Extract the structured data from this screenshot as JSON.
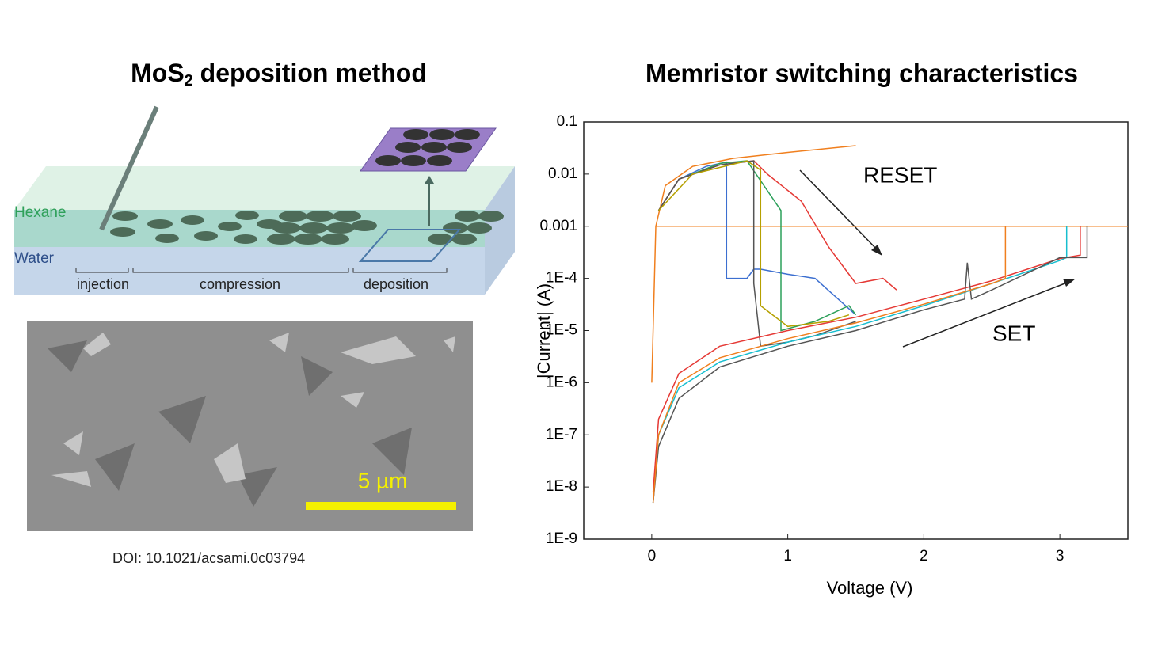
{
  "left": {
    "title": [
      "MoS",
      "2",
      " deposition method"
    ],
    "diagram": {
      "hexane": "Hexane",
      "water": "Water",
      "injection": "injection",
      "compression": "compression",
      "deposition": "deposition"
    },
    "scale_bar": "5 µm",
    "doi": "DOI: 10.1021/acsami.0c03794"
  },
  "chart_data": {
    "type": "line",
    "title": "Memristor switching characteristics",
    "x_label": "Voltage (V)",
    "y_label": "|Current| (A)",
    "yscale": "log",
    "xlim": [
      -0.5,
      3.5
    ],
    "ylim": [
      1e-09,
      0.1
    ],
    "xticks": [
      0,
      1,
      2,
      3
    ],
    "yticks": [
      0.1,
      0.01,
      0.001,
      {
        "value": 0.0001,
        "label": "1E-4"
      },
      {
        "value": 1e-05,
        "label": "1E-5"
      },
      {
        "value": 1e-06,
        "label": "1E-6"
      },
      {
        "value": 1e-07,
        "label": "1E-7"
      },
      {
        "value": 1e-08,
        "label": "1E-8"
      },
      {
        "value": 1e-09,
        "label": "1E-9"
      }
    ],
    "annotations": [
      "RESET",
      "SET"
    ],
    "series": [
      {
        "color": "#f07f1e",
        "x": [
          0.03,
          3.5
        ],
        "values": [
          0.001,
          0.001
        ]
      },
      {
        "color": "#f07f1e",
        "x": [
          0,
          0.01,
          0.02,
          0.03,
          0.1,
          0.3,
          0.6,
          1.0,
          1.5
        ],
        "values": [
          1e-06,
          1e-05,
          0.0001,
          0.001,
          0.006,
          0.014,
          0.02,
          0.026,
          0.035
        ]
      },
      {
        "color": "#3c6fd0",
        "x": [
          0.05,
          0.2,
          0.4,
          0.55,
          0.55,
          0.7,
          0.75,
          0.8,
          1.0,
          1.2,
          1.5
        ],
        "values": [
          0.002,
          0.008,
          0.014,
          0.017,
          0.0001,
          0.0001,
          0.00015,
          0.00015,
          0.00012,
          0.0001,
          2e-05
        ]
      },
      {
        "color": "#2ca05a",
        "x": [
          0.05,
          0.2,
          0.5,
          0.7,
          0.95,
          0.95,
          1.2,
          1.45,
          1.5
        ],
        "values": [
          0.002,
          0.008,
          0.016,
          0.018,
          0.002,
          1e-05,
          1.5e-05,
          3e-05,
          2e-05
        ]
      },
      {
        "color": "#e53935",
        "x": [
          0.05,
          0.2,
          0.5,
          0.75,
          0.85,
          1.1,
          1.3,
          1.5,
          1.7,
          1.8
        ],
        "values": [
          0.002,
          0.008,
          0.015,
          0.018,
          0.01,
          0.003,
          0.0004,
          8e-05,
          0.0001,
          6e-05
        ]
      },
      {
        "color": "#555555",
        "x": [
          0.05,
          0.2,
          0.5,
          0.75,
          0.75,
          0.8,
          1.0,
          1.2,
          1.5
        ],
        "values": [
          0.002,
          0.008,
          0.015,
          0.018,
          8e-05,
          5e-06,
          6e-06,
          8e-06,
          1.5e-05
        ]
      },
      {
        "color": "#b5a000",
        "x": [
          0.05,
          0.3,
          0.7,
          0.8,
          0.8,
          1.0,
          1.3,
          1.45
        ],
        "values": [
          0.002,
          0.01,
          0.018,
          0.012,
          3e-05,
          1.2e-05,
          1.5e-05,
          2e-05
        ]
      },
      {
        "color": "#17becf",
        "x": [
          0.01,
          0.05,
          0.2,
          0.5,
          1,
          1.5,
          2,
          2.5,
          3,
          3.05,
          3.05
        ],
        "values": [
          5e-09,
          1e-07,
          8e-07,
          2.5e-06,
          6e-06,
          1.2e-05,
          3e-05,
          8e-05,
          0.00022,
          0.00025,
          0.001
        ]
      },
      {
        "color": "#e53935",
        "x": [
          0.01,
          0.05,
          0.2,
          0.5,
          1,
          1.5,
          2,
          2.5,
          3,
          3.15,
          3.15
        ],
        "values": [
          8e-09,
          2e-07,
          1.5e-06,
          5e-06,
          1e-05,
          1.8e-05,
          4e-05,
          9e-05,
          0.00024,
          0.00028,
          0.001
        ]
      },
      {
        "color": "#555555",
        "x": [
          0.01,
          0.05,
          0.2,
          0.5,
          1,
          1.5,
          2,
          2.3,
          2.32,
          2.35,
          2.5,
          3,
          3.2,
          3.2
        ],
        "values": [
          5e-09,
          6e-08,
          5e-07,
          2e-06,
          5e-06,
          1e-05,
          2.5e-05,
          4e-05,
          0.0002,
          4e-05,
          6e-05,
          0.00025,
          0.00025,
          0.001
        ]
      },
      {
        "color": "#f07f1e",
        "x": [
          0.01,
          0.05,
          0.2,
          0.5,
          1,
          1.5,
          2,
          2.5,
          2.6,
          2.6
        ],
        "values": [
          5e-09,
          1e-07,
          1e-06,
          3e-06,
          7e-06,
          1.4e-05,
          3.2e-05,
          8e-05,
          0.0001,
          0.001
        ]
      }
    ]
  }
}
